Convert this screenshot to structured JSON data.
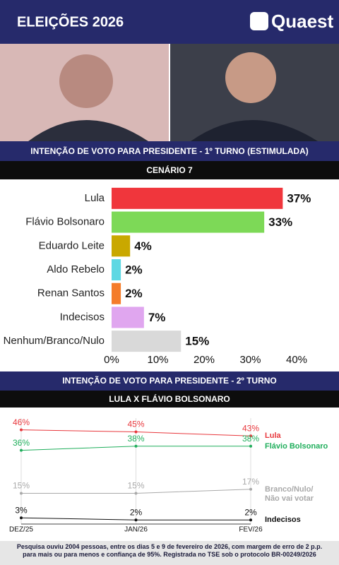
{
  "header": {
    "title": "ELEIÇÕES 2026",
    "logo": "Quaest"
  },
  "chart_data": [
    {
      "type": "bar",
      "title": "INTENÇÃO DE VOTO PARA PRESIDENTE - 1º TURNO (ESTIMULADA)",
      "subtitle": "CENÁRIO 7",
      "categories": [
        "Lula",
        "Flávio Bolsonaro",
        "Eduardo Leite",
        "Aldo Rebelo",
        "Renan Santos",
        "Indecisos",
        "Nenhum/Branco/Nulo"
      ],
      "values": [
        37,
        33,
        4,
        2,
        2,
        7,
        15
      ],
      "value_labels": [
        "37%",
        "33%",
        "4%",
        "2%",
        "2%",
        "7%",
        "15%"
      ],
      "colors": [
        "#f0363c",
        "#7dd957",
        "#c9a800",
        "#5ed8e3",
        "#f47c2a",
        "#e0a6ef",
        "#d9d9d9"
      ],
      "xlim": [
        0,
        40
      ],
      "xticks": [
        {
          "value": 0,
          "label": "0%"
        },
        {
          "value": 10,
          "label": "10%"
        },
        {
          "value": 20,
          "label": "20%"
        },
        {
          "value": 30,
          "label": "30%"
        },
        {
          "value": 40,
          "label": "40%"
        }
      ]
    },
    {
      "type": "line",
      "title": "INTENÇÃO DE VOTO PARA PRESIDENTE - 2º TURNO",
      "subtitle": "LULA X FLÁVIO BOLSONARO",
      "categories": [
        "DEZ/25",
        "JAN/26",
        "FEV/26"
      ],
      "ylim": [
        0,
        50
      ],
      "series": [
        {
          "name": "Lula",
          "color": "#e8383d",
          "values": [
            46,
            45,
            43
          ],
          "value_labels": [
            "46%",
            "45%",
            "43%"
          ]
        },
        {
          "name": "Flávio Bolsonaro",
          "color": "#1fae5b",
          "values": [
            36,
            38,
            38
          ],
          "value_labels": [
            "36%",
            "38%",
            "38%"
          ]
        },
        {
          "name": "Branco/Nulo/\nNão vai votar",
          "color": "#a9a9a9",
          "values": [
            15,
            15,
            17
          ],
          "value_labels": [
            "15%",
            "15%",
            "17%"
          ]
        },
        {
          "name": "Indecisos",
          "color": "#111111",
          "values": [
            3,
            2,
            2
          ],
          "value_labels": [
            "3%",
            "2%",
            "2%"
          ]
        }
      ]
    }
  ],
  "footer": "Pesquisa ouviu 2004 pessoas, entre os dias 5 e 9 de fevereiro de 2026, com margem de erro de 2 p.p. para mais ou para menos e confiança de 95%. Registrada no TSE sob o protocolo BR-00249/2026"
}
